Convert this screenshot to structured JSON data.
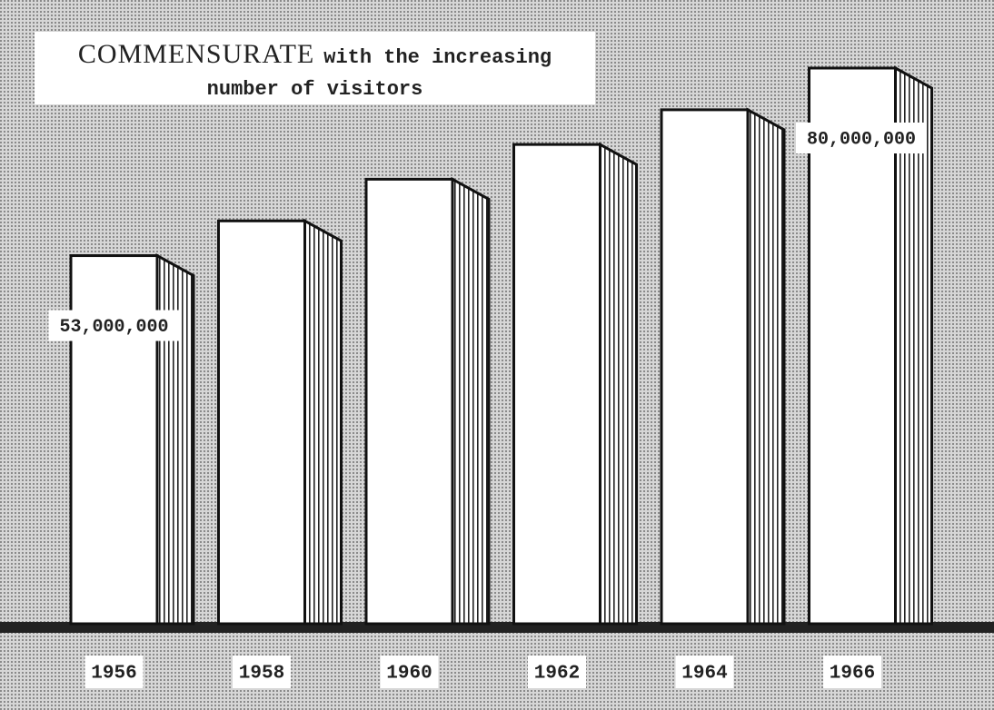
{
  "chart_data": {
    "type": "bar",
    "title": "COMMENSURATE",
    "subtitle": "with the increasing number of visitors",
    "categories": [
      "1956",
      "1958",
      "1960",
      "1962",
      "1964",
      "1966"
    ],
    "values": [
      53000000,
      58000000,
      64000000,
      69000000,
      74000000,
      80000000
    ],
    "value_labels": [
      "53,000,000",
      null,
      null,
      null,
      null,
      "80,000,000"
    ],
    "color": "#ffffff"
  }
}
